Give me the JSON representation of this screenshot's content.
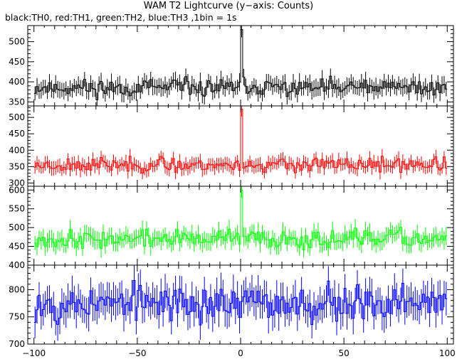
{
  "chart_data": {
    "type": "line",
    "title": "WAM T2 Lightcurve (y−axis: Counts)",
    "subtitle": "black:TH0, red:TH1, green:TH2, blue:TH3 ,1bin = 1s",
    "xlim": [
      -103,
      103
    ],
    "x_ticks": [
      -100,
      -50,
      0,
      50,
      100
    ],
    "x_tick_labels": [
      "−100",
      "−50",
      "0",
      "50",
      "100"
    ],
    "x_minor_step": 10,
    "x_minor_sub_step": 5,
    "bin_range": [
      -100,
      100
    ],
    "bin_width": 1,
    "grid": false,
    "panels": [
      {
        "name": "TH0",
        "color": "#000000",
        "ylim": [
          340,
          540
        ],
        "y_ticks": [
          350,
          400,
          450,
          500
        ],
        "y_minor_step": 10,
        "baseline": 385,
        "noise_amplitude": 18,
        "error_bar": 20,
        "peak": {
          "x": 0,
          "value": 530
        },
        "seed": 11
      },
      {
        "name": "TH1",
        "color": "#ff0000",
        "ylim": [
          290,
          535
        ],
        "y_ticks": [
          300,
          350,
          400,
          450,
          500
        ],
        "y_minor_step": 10,
        "baseline": 355,
        "noise_amplitude": 18,
        "error_bar": 20,
        "peak": {
          "x": 0,
          "value": 525
        },
        "seed": 23
      },
      {
        "name": "TH2",
        "color": "#00ff00",
        "ylim": [
          400,
          610
        ],
        "y_ticks": [
          400,
          450,
          500,
          550,
          600
        ],
        "y_minor_step": 10,
        "baseline": 470,
        "noise_amplitude": 20,
        "error_bar": 22,
        "peak": {
          "x": 0,
          "value": 600
        },
        "seed": 37
      },
      {
        "name": "TH3",
        "color": "#0000ff",
        "ylim": [
          700,
          845
        ],
        "y_ticks": [
          700,
          750,
          800
        ],
        "y_minor_step": 10,
        "baseline": 775,
        "noise_amplitude": 28,
        "error_bar": 28,
        "peak": null,
        "seed": 53
      }
    ]
  }
}
